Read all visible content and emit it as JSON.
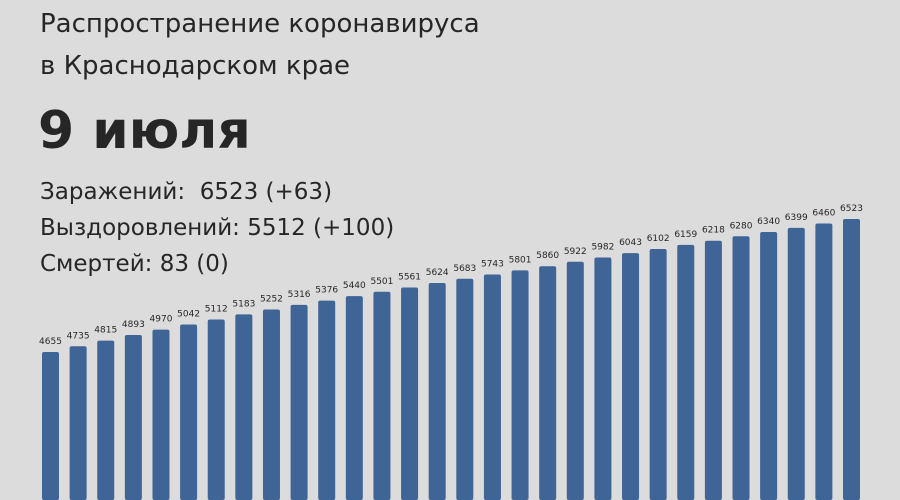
{
  "chart_data": {
    "type": "bar",
    "title": [
      "Распространение коронавируса",
      "в Краснодарском крае"
    ],
    "subtitle": "9 июля",
    "annotations": [
      "Заражений:  6523 (+63)",
      "Выздоровлений: 5512 (+100)",
      "Смертей: 83 (0)"
    ],
    "values": [
      4655,
      4735,
      4815,
      4893,
      4970,
      5042,
      5112,
      5183,
      5252,
      5316,
      5376,
      5440,
      5501,
      5561,
      5624,
      5683,
      5743,
      5801,
      5860,
      5922,
      5982,
      6043,
      6102,
      6159,
      6218,
      6280,
      6340,
      6399,
      6460,
      6523
    ],
    "color": "#3f6496"
  }
}
